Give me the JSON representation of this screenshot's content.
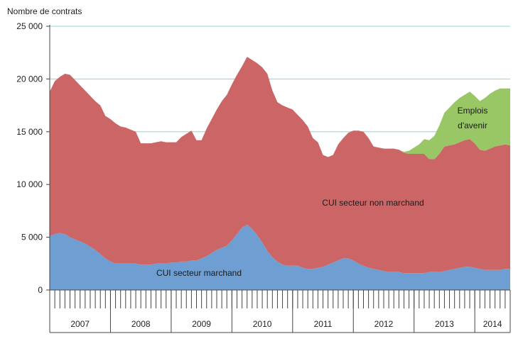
{
  "chart_data": {
    "type": "area",
    "ylabel": "Nombre de contrats",
    "ylim": [
      0,
      25000
    ],
    "yticks": [
      0,
      5000,
      10000,
      15000,
      20000,
      25000
    ],
    "ytick_labels": [
      "0",
      "5 000",
      "10 000",
      "15 000",
      "20 000",
      "25 000"
    ],
    "year_labels": [
      "2007",
      "2008",
      "2009",
      "2010",
      "2011",
      "2012",
      "2013",
      "2014"
    ],
    "stacked": true,
    "x_start": "2007-01",
    "grid": "horizontal",
    "series": [
      {
        "name": "CUI secteur marchand",
        "color": "#6f9fd2",
        "values": [
          5100,
          5300,
          5400,
          5300,
          5000,
          4800,
          4600,
          4400,
          4100,
          3800,
          3400,
          3000,
          2700,
          2500,
          2500,
          2500,
          2500,
          2500,
          2400,
          2400,
          2400,
          2500,
          2500,
          2500,
          2600,
          2600,
          2700,
          2700,
          2800,
          2800,
          3000,
          3200,
          3500,
          3800,
          4000,
          4200,
          4700,
          5300,
          5900,
          6200,
          5800,
          5200,
          4500,
          3700,
          3100,
          2700,
          2400,
          2300,
          2300,
          2300,
          2100,
          2000,
          2000,
          2100,
          2200,
          2400,
          2600,
          2800,
          3000,
          3000,
          2800,
          2500,
          2300,
          2100,
          2000,
          1900,
          1800,
          1700,
          1700,
          1700,
          1600,
          1600,
          1600,
          1600,
          1600,
          1700,
          1700,
          1700,
          1800,
          1900,
          2000,
          2100,
          2200,
          2200,
          2100,
          2000,
          1900,
          1900,
          1900,
          1900,
          2000,
          2000
        ]
      },
      {
        "name": "CUI secteur non marchand",
        "color": "#cc6666",
        "values": [
          13700,
          14500,
          14800,
          15200,
          15400,
          15100,
          14800,
          14500,
          14300,
          14100,
          14100,
          13500,
          13500,
          13300,
          13000,
          12900,
          12700,
          12500,
          11500,
          11500,
          11500,
          11500,
          11600,
          11500,
          11400,
          11400,
          11800,
          12100,
          12300,
          11400,
          11200,
          12100,
          12700,
          13300,
          13900,
          14300,
          14800,
          15100,
          15300,
          15900,
          16000,
          16300,
          16600,
          16800,
          15800,
          15100,
          15100,
          15000,
          14800,
          14300,
          14000,
          13500,
          12400,
          11900,
          10600,
          10200,
          10200,
          11000,
          11400,
          11900,
          12300,
          12600,
          12700,
          12300,
          11600,
          11600,
          11600,
          11700,
          11700,
          11600,
          11400,
          11300,
          11300,
          11300,
          11300,
          10700,
          10700,
          11200,
          11800,
          11800,
          11800,
          11900,
          12000,
          12100,
          11800,
          11300,
          11300,
          11500,
          11700,
          11800,
          11800,
          11700
        ]
      },
      {
        "name": "Emplois d'avenir",
        "color": "#99c765",
        "values": [
          0,
          0,
          0,
          0,
          0,
          0,
          0,
          0,
          0,
          0,
          0,
          0,
          0,
          0,
          0,
          0,
          0,
          0,
          0,
          0,
          0,
          0,
          0,
          0,
          0,
          0,
          0,
          0,
          0,
          0,
          0,
          0,
          0,
          0,
          0,
          0,
          0,
          0,
          0,
          0,
          0,
          0,
          0,
          0,
          0,
          0,
          0,
          0,
          0,
          0,
          0,
          0,
          0,
          0,
          0,
          0,
          0,
          0,
          0,
          0,
          0,
          0,
          0,
          0,
          0,
          0,
          0,
          0,
          0,
          0,
          100,
          300,
          600,
          900,
          1400,
          1800,
          2200,
          2700,
          3200,
          3600,
          4000,
          4200,
          4300,
          4500,
          4500,
          4600,
          5000,
          5200,
          5300,
          5400,
          5300,
          5400
        ]
      }
    ],
    "annotations": [
      {
        "text": "Emplois",
        "series": 2
      },
      {
        "text": "d'avenir",
        "series": 2
      },
      {
        "text": "CUI secteur non marchand",
        "series": 1
      },
      {
        "text": "CUI secteur marchand",
        "series": 0
      }
    ]
  }
}
